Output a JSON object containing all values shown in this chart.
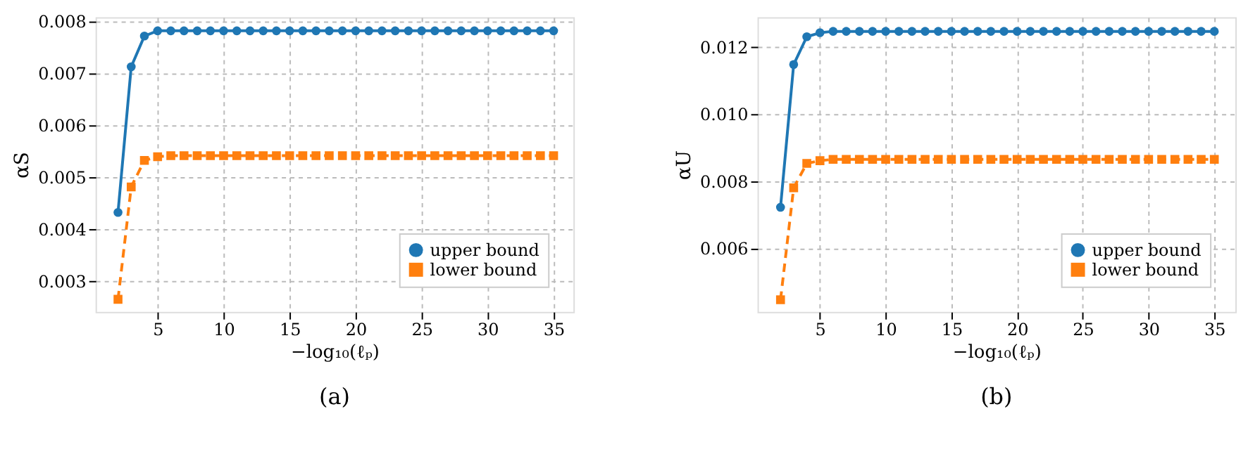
{
  "chart_data": [
    {
      "type": "line",
      "xlabel": "−log₁₀(ℓₚ)",
      "ylabel": "αS",
      "annotations": [
        "(a)"
      ],
      "x": [
        2,
        3,
        4,
        5,
        6,
        7,
        8,
        9,
        10,
        11,
        12,
        13,
        14,
        15,
        16,
        17,
        18,
        19,
        20,
        21,
        22,
        23,
        24,
        25,
        26,
        27,
        28,
        29,
        30,
        31,
        32,
        33,
        34,
        35
      ],
      "xlim": [
        0.3,
        36.5
      ],
      "xticks": [
        5,
        10,
        15,
        20,
        25,
        30,
        35
      ],
      "ylim": [
        0.00241,
        0.00807
      ],
      "yticks": [
        0.003,
        0.004,
        0.005,
        0.006,
        0.007,
        0.008
      ],
      "grid": true,
      "legend": "bottom right",
      "series": [
        {
          "name": "upper bound",
          "color": "#1f77b4",
          "marker": "circle",
          "line_style": "solid",
          "values": [
            0.00432,
            0.00712,
            0.00771,
            0.00781,
            0.00781,
            0.00781,
            0.00781,
            0.00781,
            0.00781,
            0.00781,
            0.00781,
            0.00781,
            0.00781,
            0.00781,
            0.00781,
            0.00781,
            0.00781,
            0.00781,
            0.00781,
            0.00781,
            0.00781,
            0.00781,
            0.00781,
            0.00781,
            0.00781,
            0.00781,
            0.00781,
            0.00781,
            0.00781,
            0.00781,
            0.00781,
            0.00781,
            0.00781,
            0.00781
          ]
        },
        {
          "name": "lower bound",
          "color": "#ff7f0e",
          "marker": "square",
          "line_style": "dashed",
          "values": [
            0.00265,
            0.00481,
            0.00532,
            0.00539,
            0.00541,
            0.00541,
            0.00541,
            0.00541,
            0.00541,
            0.00541,
            0.00541,
            0.00541,
            0.00541,
            0.00541,
            0.00541,
            0.00541,
            0.00541,
            0.00541,
            0.00541,
            0.00541,
            0.00541,
            0.00541,
            0.00541,
            0.00541,
            0.00541,
            0.00541,
            0.00541,
            0.00541,
            0.00541,
            0.00541,
            0.00541,
            0.00541,
            0.00541,
            0.00541
          ]
        }
      ]
    },
    {
      "type": "line",
      "xlabel": "−log₁₀(ℓₚ)",
      "ylabel": "αU",
      "annotations": [
        "(b)"
      ],
      "x": [
        2,
        3,
        4,
        5,
        6,
        7,
        8,
        9,
        10,
        11,
        12,
        13,
        14,
        15,
        16,
        17,
        18,
        19,
        20,
        21,
        22,
        23,
        24,
        25,
        26,
        27,
        28,
        29,
        30,
        31,
        32,
        33,
        34,
        35
      ],
      "xlim": [
        0.25,
        36.6
      ],
      "xticks": [
        5,
        10,
        15,
        20,
        25,
        30,
        35
      ],
      "ylim": [
        0.0041,
        0.01289
      ],
      "yticks": [
        0.006,
        0.008,
        {
          "value": 0.01,
          "label": "0.010"
        },
        0.012
      ],
      "grid": true,
      "legend": "bottom right",
      "series": [
        {
          "name": "upper bound",
          "color": "#1f77b4",
          "marker": "circle",
          "line_style": "solid",
          "values": [
            0.00722,
            0.01148,
            0.01231,
            0.01243,
            0.01247,
            0.01247,
            0.01247,
            0.01247,
            0.01247,
            0.01247,
            0.01247,
            0.01247,
            0.01247,
            0.01247,
            0.01247,
            0.01247,
            0.01247,
            0.01247,
            0.01247,
            0.01247,
            0.01247,
            0.01247,
            0.01247,
            0.01247,
            0.01247,
            0.01247,
            0.01247,
            0.01247,
            0.01247,
            0.01247,
            0.01247,
            0.01247,
            0.01247,
            0.01247
          ]
        },
        {
          "name": "lower bound",
          "color": "#ff7f0e",
          "marker": "square",
          "line_style": "dashed",
          "values": [
            0.00446,
            0.0078,
            0.00853,
            0.00861,
            0.00865,
            0.00865,
            0.00865,
            0.00865,
            0.00865,
            0.00865,
            0.00865,
            0.00865,
            0.00865,
            0.00865,
            0.00865,
            0.00865,
            0.00865,
            0.00865,
            0.00865,
            0.00865,
            0.00865,
            0.00865,
            0.00865,
            0.00865,
            0.00865,
            0.00865,
            0.00865,
            0.00865,
            0.00865,
            0.00865,
            0.00865,
            0.00865,
            0.00865,
            0.00865
          ]
        }
      ]
    }
  ]
}
